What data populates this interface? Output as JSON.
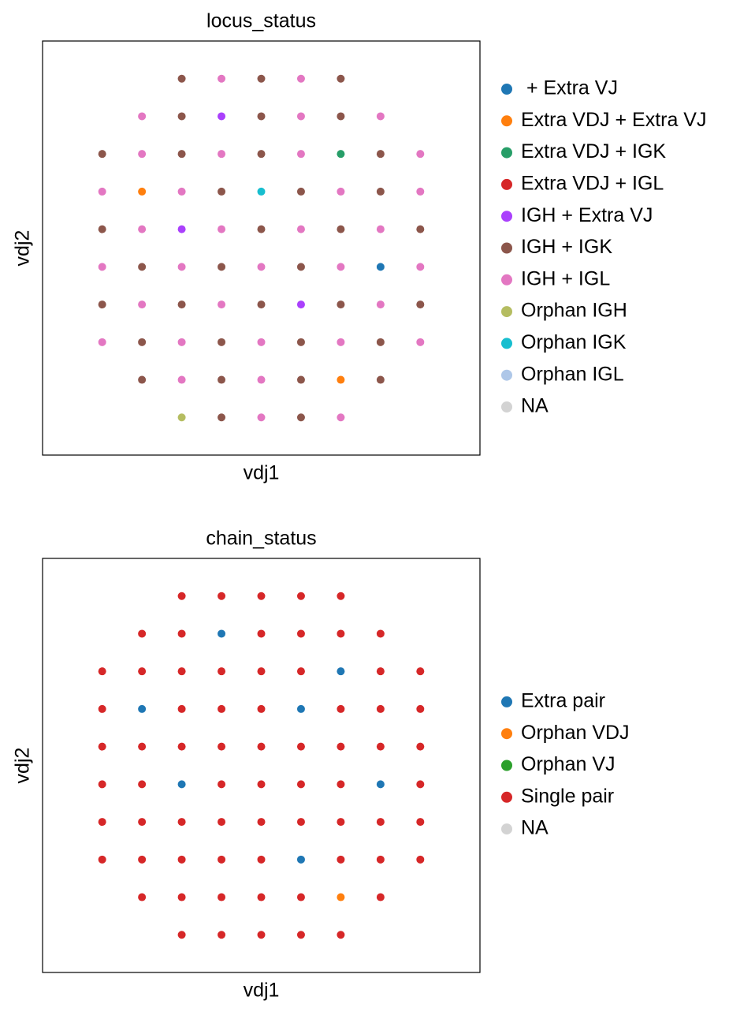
{
  "chart_data": [
    {
      "type": "scatter",
      "title": "locus_status",
      "xlabel": "vdj1",
      "ylabel": "vdj2",
      "xlim": [
        -1.1,
        1.1
      ],
      "ylim": [
        -1.1,
        1.1
      ],
      "legend": "right",
      "series": [
        {
          "name": " + Extra VJ",
          "color": "#1f77b4",
          "x": [
            0.6
          ],
          "y": [
            -0.1
          ]
        },
        {
          "name": "Extra VDJ + Extra VJ",
          "color": "#ff7f0e",
          "x": [
            -0.6,
            0.4
          ],
          "y": [
            0.3,
            -0.7
          ]
        },
        {
          "name": "Extra VDJ + IGK",
          "color": "#279e68",
          "x": [
            0.4
          ],
          "y": [
            0.5
          ]
        },
        {
          "name": "Extra VDJ + IGL",
          "color": "#d62728",
          "x": [],
          "y": []
        },
        {
          "name": "IGH + Extra VJ",
          "color": "#aa40fc",
          "x": [
            -0.2,
            -0.4,
            0.2
          ],
          "y": [
            0.7,
            0.1,
            -0.3
          ]
        },
        {
          "name": "IGH + IGK",
          "color": "#8c564b",
          "x": [
            -0.4,
            0,
            0.4,
            -0.4,
            0,
            0.4,
            -0.8,
            -0.4,
            0,
            0.6,
            -0.2,
            0.2,
            0.6,
            -0.8,
            0,
            0.4,
            0.8,
            -0.6,
            -0.2,
            0.2,
            -0.8,
            -0.4,
            0,
            0.4,
            0.8,
            -0.6,
            -0.2,
            0.2,
            0.6,
            -0.6,
            -0.2,
            0.2,
            0.6,
            -0.2,
            0.2
          ],
          "y": [
            0.9,
            0.9,
            0.9,
            0.7,
            0.7,
            0.7,
            0.5,
            0.5,
            0.5,
            0.5,
            0.3,
            0.3,
            0.3,
            0.1,
            0.1,
            0.1,
            0.1,
            -0.1,
            -0.1,
            -0.1,
            -0.3,
            -0.3,
            -0.3,
            -0.3,
            -0.3,
            -0.5,
            -0.5,
            -0.5,
            -0.5,
            -0.7,
            -0.7,
            -0.7,
            -0.7,
            -0.9,
            -0.9
          ]
        },
        {
          "name": "IGH + IGL",
          "color": "#e377c2",
          "x": [
            -0.2,
            0.2,
            -0.6,
            0.2,
            0.6,
            -0.6,
            -0.2,
            0.2,
            0.8,
            -0.8,
            -0.4,
            0.4,
            0.8,
            -0.6,
            -0.2,
            0.2,
            0.6,
            -0.8,
            -0.4,
            0,
            0.4,
            0.8,
            -0.6,
            -0.2,
            0.6,
            -0.8,
            -0.4,
            0,
            0.4,
            0.8,
            -0.4,
            0,
            0,
            0.4
          ],
          "y": [
            0.9,
            0.9,
            0.7,
            0.7,
            0.7,
            0.5,
            0.5,
            0.5,
            0.5,
            0.3,
            0.3,
            0.3,
            0.3,
            0.1,
            0.1,
            0.1,
            0.1,
            -0.1,
            -0.1,
            -0.1,
            -0.1,
            -0.1,
            -0.3,
            -0.3,
            -0.3,
            -0.5,
            -0.5,
            -0.5,
            -0.5,
            -0.5,
            -0.7,
            -0.7,
            -0.9,
            -0.9
          ]
        },
        {
          "name": "Orphan IGH",
          "color": "#b5bd61",
          "x": [
            -0.4
          ],
          "y": [
            -0.9
          ]
        },
        {
          "name": "Orphan IGK",
          "color": "#17becf",
          "x": [
            0
          ],
          "y": [
            0.3
          ]
        },
        {
          "name": "Orphan IGL",
          "color": "#aec7e8",
          "x": [],
          "y": []
        },
        {
          "name": "NA",
          "color": "#d3d3d3",
          "x": [],
          "y": []
        }
      ]
    },
    {
      "type": "scatter",
      "title": "chain_status",
      "xlabel": "vdj1",
      "ylabel": "vdj2",
      "xlim": [
        -1.1,
        1.1
      ],
      "ylim": [
        -1.1,
        1.1
      ],
      "legend": "right",
      "series": [
        {
          "name": "Extra pair",
          "color": "#1f77b4",
          "x": [
            -0.6,
            0.2,
            -0.4,
            0.6,
            0.2,
            -0.2,
            0.4
          ],
          "y": [
            0.3,
            0.3,
            -0.1,
            -0.1,
            -0.5,
            0.7,
            0.5
          ]
        },
        {
          "name": "Orphan VDJ",
          "color": "#ff7f0e",
          "x": [
            0.4
          ],
          "y": [
            -0.7
          ]
        },
        {
          "name": "Orphan VJ",
          "color": "#2ca02c",
          "x": [],
          "y": []
        },
        {
          "name": "Single pair",
          "color": "#d62728",
          "x": [
            -0.4,
            0,
            0.4,
            -0.4,
            0,
            0.4,
            -0.8,
            -0.4,
            0,
            0.6,
            -0.2,
            0.6,
            -0.8,
            0,
            0.4,
            0.8,
            -0.6,
            -0.2,
            0.2,
            -0.8,
            -0.4,
            0,
            0.4,
            0.8,
            -0.6,
            -0.2,
            0.6,
            -0.6,
            -0.2,
            0.2,
            0.6,
            -0.2,
            0.2,
            -0.2,
            0.2,
            -0.6,
            0.2,
            0.6,
            -0.6,
            -0.2,
            0.2,
            0.8,
            -0.8,
            -0.4,
            0.4,
            0.8,
            -0.6,
            -0.2,
            0.2,
            0.6,
            -0.8,
            0,
            0.4,
            0.8,
            -0.6,
            -0.2,
            0.6,
            -0.8,
            -0.4,
            0,
            0.4,
            0.8,
            -0.4,
            0,
            0,
            0.4,
            0,
            -0.4,
            0.2,
            -0.4
          ],
          "y": [
            0.9,
            0.9,
            0.9,
            0.7,
            0.7,
            0.7,
            0.5,
            0.5,
            0.5,
            0.5,
            0.3,
            0.3,
            0.1,
            0.1,
            0.1,
            0.1,
            -0.1,
            -0.1,
            -0.1,
            -0.3,
            -0.3,
            -0.3,
            -0.3,
            -0.3,
            -0.5,
            -0.5,
            -0.5,
            -0.7,
            -0.7,
            -0.7,
            -0.7,
            -0.9,
            -0.9,
            0.9,
            0.9,
            0.7,
            0.7,
            0.7,
            0.5,
            0.5,
            0.5,
            0.5,
            0.3,
            0.3,
            0.3,
            0.3,
            0.1,
            0.1,
            0.1,
            0.1,
            -0.1,
            -0.1,
            -0.1,
            -0.1,
            -0.3,
            -0.3,
            -0.3,
            -0.5,
            -0.5,
            -0.5,
            -0.5,
            -0.5,
            -0.7,
            -0.7,
            -0.9,
            -0.9,
            0.3,
            0.1,
            -0.3,
            -0.9
          ]
        },
        {
          "name": "NA",
          "color": "#d3d3d3",
          "x": [],
          "y": []
        }
      ]
    }
  ]
}
